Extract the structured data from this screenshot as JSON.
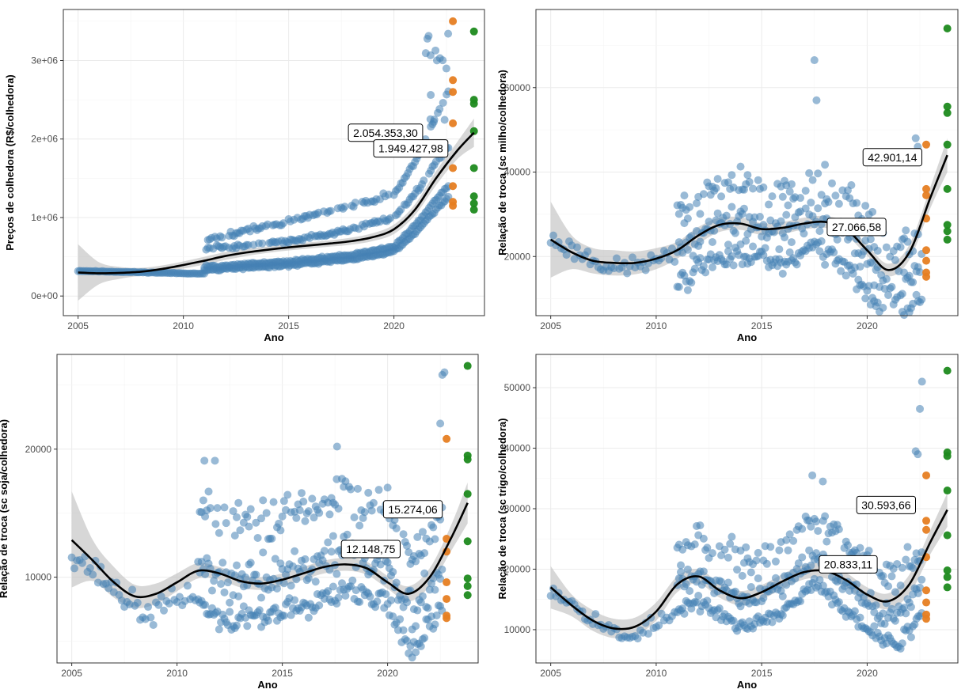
{
  "colors": {
    "historical": "#4682b4",
    "recent_orange": "#e67e22",
    "recent_green": "#1e8a1e",
    "fit_line": "#000000",
    "band": "#bdbdbd"
  },
  "chart_data": [
    {
      "type": "scatter",
      "xlabel": "Ano",
      "ylabel": "Preços de colhedora (R$/colhedora)",
      "xlim": [
        2004.3,
        2024.3
      ],
      "ylim": [
        -250000,
        3650000
      ],
      "xticks": [
        2005,
        2010,
        2015,
        2020
      ],
      "yticks": [
        0,
        1000000,
        2000000,
        3000000
      ],
      "ytick_labels": [
        "0e+00",
        "1e+06",
        "2e+06",
        "3e+06"
      ],
      "grid": true,
      "legend": "none",
      "fit": {
        "x": [
          2005,
          2006,
          2007,
          2008,
          2009,
          2010,
          2011,
          2012,
          2013,
          2014,
          2015,
          2016,
          2017,
          2018,
          2019,
          2020,
          2021,
          2022,
          2023,
          2023.8
        ],
        "y": [
          300000,
          290000,
          295000,
          310000,
          345000,
          395000,
          450000,
          510000,
          555000,
          590000,
          620000,
          645000,
          670000,
          700000,
          750000,
          850000,
          1100000,
          1500000,
          1850000,
          2080000
        ],
        "lower": [
          -60000,
          150000,
          220000,
          260000,
          300000,
          350000,
          400000,
          460000,
          510000,
          550000,
          580000,
          605000,
          630000,
          655000,
          700000,
          790000,
          1030000,
          1410000,
          1740000,
          1900000
        ],
        "upper": [
          660000,
          430000,
          370000,
          360000,
          390000,
          440000,
          500000,
          560000,
          600000,
          630000,
          660000,
          685000,
          710000,
          745000,
          800000,
          910000,
          1170000,
          1590000,
          1960000,
          2260000
        ]
      },
      "series": [
        {
          "name": "historical",
          "color_key": "historical",
          "generator": "series_a"
        },
        {
          "name": "recent_2022",
          "color_key": "recent_orange",
          "points": [
            [
              2022.8,
              3500000
            ],
            [
              2022.8,
              2750000
            ],
            [
              2022.8,
              2600000
            ],
            [
              2022.8,
              2200000
            ],
            [
              2022.8,
              1630000
            ],
            [
              2022.8,
              1400000
            ],
            [
              2022.8,
              1200000
            ],
            [
              2022.8,
              1150000
            ]
          ]
        },
        {
          "name": "recent_2023",
          "color_key": "recent_green",
          "points": [
            [
              2023.8,
              3370000
            ],
            [
              2023.8,
              2500000
            ],
            [
              2023.8,
              2450000
            ],
            [
              2023.8,
              2100000
            ],
            [
              2023.8,
              1630000
            ],
            [
              2023.8,
              1270000
            ],
            [
              2023.8,
              1180000
            ],
            [
              2023.8,
              1100000
            ]
          ]
        }
      ],
      "annotations": [
        {
          "text": "2.054.353,30",
          "x": 2019.6,
          "y": 2080000
        },
        {
          "text": "1.949.427,98",
          "x": 2020.8,
          "y": 1880000
        }
      ]
    },
    {
      "type": "scatter",
      "xlabel": "Ano",
      "ylabel": "Relação de troca (sc milho/colhedora)",
      "xlim": [
        2004.3,
        2024.3
      ],
      "ylim": [
        6000,
        78500
      ],
      "xticks": [
        2005,
        2010,
        2015,
        2020
      ],
      "yticks": [
        20000,
        40000,
        60000
      ],
      "ytick_labels": [
        "20000",
        "40000",
        "60000"
      ],
      "grid": true,
      "legend": "none",
      "fit": {
        "x": [
          2005,
          2006,
          2007,
          2008,
          2009,
          2010,
          2011,
          2012,
          2013,
          2014,
          2015,
          2016,
          2017,
          2018,
          2019,
          2020,
          2021,
          2022,
          2023,
          2023.8
        ],
        "y": [
          24000,
          21000,
          19000,
          18500,
          18500,
          19500,
          21500,
          25000,
          27500,
          27800,
          26500,
          26800,
          27800,
          28200,
          26500,
          21500,
          16800,
          21000,
          34000,
          44000
        ],
        "lower": [
          15000,
          17000,
          16000,
          15500,
          15800,
          17000,
          19500,
          23000,
          25800,
          26300,
          25100,
          25400,
          26400,
          26800,
          25000,
          20200,
          15300,
          19200,
          31500,
          40000
        ],
        "upper": [
          33000,
          25000,
          22000,
          21500,
          21200,
          22000,
          23500,
          27000,
          29200,
          29300,
          27900,
          28200,
          29200,
          29600,
          28000,
          22800,
          18300,
          22800,
          36500,
          48000
        ]
      },
      "series": [
        {
          "name": "historical",
          "color_key": "historical",
          "generator": "series_b"
        },
        {
          "name": "recent_2022",
          "color_key": "recent_orange",
          "points": [
            [
              2022.8,
              46500
            ],
            [
              2022.8,
              36000
            ],
            [
              2022.8,
              34500
            ],
            [
              2022.8,
              29000
            ],
            [
              2022.8,
              21500
            ],
            [
              2022.8,
              19000
            ],
            [
              2022.8,
              16200
            ],
            [
              2022.8,
              15200
            ]
          ]
        },
        {
          "name": "recent_2023",
          "color_key": "recent_green",
          "points": [
            [
              2023.8,
              74000
            ],
            [
              2023.8,
              55500
            ],
            [
              2023.8,
              54000
            ],
            [
              2023.8,
              46500
            ],
            [
              2023.8,
              36000
            ],
            [
              2023.8,
              27500
            ],
            [
              2023.8,
              26000
            ],
            [
              2023.8,
              24000
            ]
          ]
        }
      ],
      "annotations": [
        {
          "text": "42.901,14",
          "x": 2021.2,
          "y": 43500
        },
        {
          "text": "27.066,58",
          "x": 2019.5,
          "y": 27000
        }
      ]
    },
    {
      "type": "scatter",
      "xlabel": "Ano",
      "ylabel": "Relação de troca (sc soja/colhedora)",
      "xlim": [
        2004.3,
        2024.3
      ],
      "ylim": [
        3300,
        27400
      ],
      "xticks": [
        2005,
        2010,
        2015,
        2020
      ],
      "yticks": [
        10000,
        20000
      ],
      "ytick_labels": [
        "10000",
        "20000"
      ],
      "grid": true,
      "legend": "none",
      "fit": {
        "x": [
          2005,
          2006,
          2007,
          2008,
          2009,
          2010,
          2011,
          2012,
          2013,
          2014,
          2015,
          2016,
          2017,
          2018,
          2019,
          2020,
          2021,
          2022,
          2023,
          2023.8
        ],
        "y": [
          12900,
          11300,
          9600,
          8500,
          8700,
          9600,
          10500,
          10300,
          9700,
          9500,
          9800,
          10300,
          10800,
          11000,
          10700,
          9600,
          8700,
          10000,
          13000,
          15800
        ],
        "lower": [
          9200,
          9700,
          8400,
          7600,
          7900,
          8900,
          9900,
          9800,
          9200,
          9000,
          9300,
          9800,
          10300,
          10500,
          10200,
          9100,
          8100,
          9300,
          12000,
          14200
        ],
        "upper": [
          16700,
          12900,
          10800,
          9400,
          9500,
          10300,
          11100,
          10800,
          10200,
          10000,
          10300,
          10800,
          11300,
          11500,
          11200,
          10100,
          9300,
          10700,
          14000,
          17400
        ]
      },
      "series": [
        {
          "name": "historical",
          "color_key": "historical",
          "generator": "series_c"
        },
        {
          "name": "recent_2022",
          "color_key": "recent_orange",
          "points": [
            [
              2022.8,
              20800
            ],
            [
              2022.8,
              13000
            ],
            [
              2022.8,
              12000
            ],
            [
              2022.8,
              9600
            ],
            [
              2022.8,
              8300
            ],
            [
              2022.8,
              7000
            ],
            [
              2022.8,
              6800
            ]
          ]
        },
        {
          "name": "recent_2023",
          "color_key": "recent_green",
          "points": [
            [
              2023.8,
              26500
            ],
            [
              2023.8,
              19500
            ],
            [
              2023.8,
              19200
            ],
            [
              2023.8,
              16500
            ],
            [
              2023.8,
              12800
            ],
            [
              2023.8,
              9900
            ],
            [
              2023.8,
              9300
            ],
            [
              2023.8,
              8600
            ]
          ]
        }
      ],
      "annotations": [
        {
          "text": "15.274,06",
          "x": 2021.2,
          "y": 15300
        },
        {
          "text": "12.148,75",
          "x": 2019.2,
          "y": 12200
        }
      ]
    },
    {
      "type": "scatter",
      "xlabel": "Ano",
      "ylabel": "Relação de troca (sc trigo/colhedora)",
      "xlim": [
        2004.3,
        2024.3
      ],
      "ylim": [
        4500,
        55500
      ],
      "xticks": [
        2005,
        2010,
        2015,
        2020
      ],
      "yticks": [
        10000,
        20000,
        30000,
        40000,
        50000
      ],
      "ytick_labels": [
        "10000",
        "20000",
        "30000",
        "40000",
        "50000"
      ],
      "grid": true,
      "legend": "none",
      "fit": {
        "x": [
          2005,
          2006,
          2007,
          2008,
          2009,
          2010,
          2011,
          2012,
          2013,
          2014,
          2015,
          2016,
          2017,
          2018,
          2019,
          2020,
          2021,
          2022,
          2023,
          2023.8
        ],
        "y": [
          17000,
          14000,
          11500,
          10200,
          10500,
          13000,
          17500,
          18800,
          16500,
          15200,
          16200,
          18000,
          19500,
          19700,
          18200,
          15800,
          14700,
          17500,
          24500,
          29800
        ],
        "lower": [
          13500,
          12200,
          9800,
          8600,
          9000,
          11500,
          16200,
          17600,
          15300,
          14000,
          15000,
          16800,
          18300,
          18500,
          17000,
          14600,
          13400,
          15900,
          22500,
          27000
        ],
        "upper": [
          20500,
          15800,
          13200,
          11800,
          12000,
          14500,
          18800,
          20000,
          17700,
          16400,
          17400,
          19200,
          20700,
          20900,
          19400,
          17000,
          16000,
          19100,
          26500,
          32600
        ]
      },
      "series": [
        {
          "name": "historical",
          "color_key": "historical",
          "generator": "series_d"
        },
        {
          "name": "recent_2022",
          "color_key": "recent_orange",
          "points": [
            [
              2022.8,
              35500
            ],
            [
              2022.8,
              28000
            ],
            [
              2022.8,
              26500
            ],
            [
              2022.8,
              22000
            ],
            [
              2022.8,
              16500
            ],
            [
              2022.8,
              14500
            ],
            [
              2022.8,
              12500
            ],
            [
              2022.8,
              11800
            ]
          ]
        },
        {
          "name": "recent_2023",
          "color_key": "recent_green",
          "points": [
            [
              2023.8,
              52800
            ],
            [
              2023.8,
              39300
            ],
            [
              2023.8,
              38700
            ],
            [
              2023.8,
              33000
            ],
            [
              2023.8,
              25600
            ],
            [
              2023.8,
              19800
            ],
            [
              2023.8,
              18700
            ],
            [
              2023.8,
              17000
            ]
          ]
        }
      ],
      "annotations": [
        {
          "text": "30.593,66",
          "x": 2020.9,
          "y": 30600
        },
        {
          "text": "20.833,11",
          "x": 2019.1,
          "y": 20800
        }
      ]
    }
  ]
}
